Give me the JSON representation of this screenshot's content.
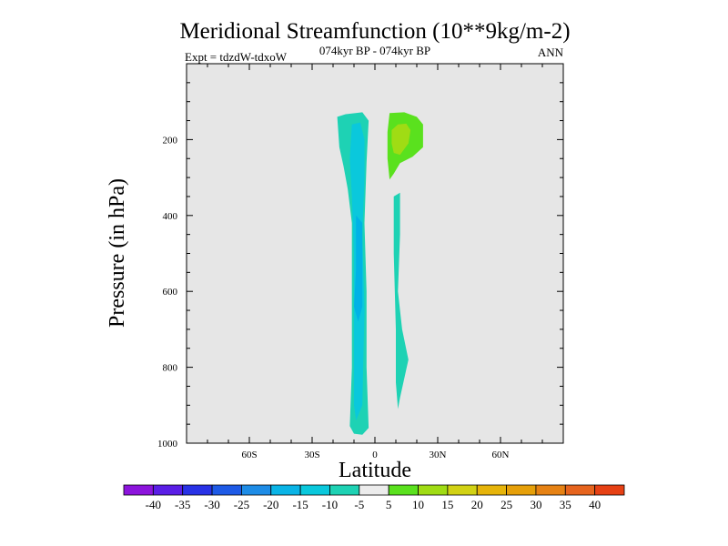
{
  "chart_data": {
    "type": "contour",
    "title": "Meridional Streamfunction (10**9kg/m-2)",
    "subtitle_left": "Expt = tdzdW-tdxoW",
    "subtitle_center": "074kyr BP - 074kyr BP",
    "subtitle_right": "ANN",
    "xlabel": "Latitude",
    "ylabel": "Pressure (in hPa)",
    "xlim": [
      -90,
      90
    ],
    "ylim": [
      1000,
      0
    ],
    "x_ticks": [
      {
        "value": -60,
        "label": "60S"
      },
      {
        "value": -30,
        "label": "30S"
      },
      {
        "value": 0,
        "label": "0"
      },
      {
        "value": 30,
        "label": "30N"
      },
      {
        "value": 60,
        "label": "60N"
      }
    ],
    "y_ticks": [
      {
        "value": 200,
        "label": "200"
      },
      {
        "value": 400,
        "label": "400"
      },
      {
        "value": 600,
        "label": "600"
      },
      {
        "value": 800,
        "label": "800"
      },
      {
        "value": 1000,
        "label": "1000"
      }
    ],
    "background_color": "#e6e6e6",
    "contour_regions": [
      {
        "name": "negative-cell-outer",
        "level_min": -10,
        "level_max": -5,
        "color": "#1ed2b4",
        "points": [
          [
            -18,
            140
          ],
          [
            -14,
            133
          ],
          [
            -6,
            128
          ],
          [
            -3,
            150
          ],
          [
            -4,
            260
          ],
          [
            -5,
            420
          ],
          [
            -4,
            600
          ],
          [
            -4,
            800
          ],
          [
            -3,
            960
          ],
          [
            -6,
            978
          ],
          [
            -10,
            975
          ],
          [
            -12,
            955
          ],
          [
            -11,
            800
          ],
          [
            -11,
            600
          ],
          [
            -11,
            420
          ],
          [
            -13,
            330
          ],
          [
            -15,
            270
          ],
          [
            -17,
            220
          ]
        ]
      },
      {
        "name": "negative-cell-mid",
        "level_min": -15,
        "level_max": -10,
        "color": "#0ac8dc",
        "points": [
          [
            -11,
            160
          ],
          [
            -7,
            155
          ],
          [
            -5,
            200
          ],
          [
            -5,
            300
          ],
          [
            -6,
            450
          ],
          [
            -5,
            650
          ],
          [
            -6,
            900
          ],
          [
            -9,
            940
          ],
          [
            -10,
            900
          ],
          [
            -10,
            700
          ],
          [
            -10,
            500
          ],
          [
            -11,
            350
          ],
          [
            -12,
            250
          ]
        ]
      },
      {
        "name": "negative-cell-inner",
        "level_min": -20,
        "level_max": -15,
        "color": "#00b2e6",
        "points": [
          [
            -9,
            400
          ],
          [
            -6,
            420
          ],
          [
            -6,
            520
          ],
          [
            -6,
            640
          ],
          [
            -8,
            680
          ],
          [
            -10,
            640
          ],
          [
            -9,
            540
          ],
          [
            -9,
            480
          ]
        ]
      },
      {
        "name": "positive-cell-outer",
        "level_min": 5,
        "level_max": 10,
        "color": "#5ae11e",
        "points": [
          [
            7,
            130
          ],
          [
            14,
            128
          ],
          [
            20,
            140
          ],
          [
            23,
            160
          ],
          [
            23,
            220
          ],
          [
            18,
            245
          ],
          [
            12,
            262
          ],
          [
            9,
            290
          ],
          [
            7,
            305
          ],
          [
            6,
            250
          ],
          [
            6,
            180
          ]
        ]
      },
      {
        "name": "positive-cell-inner",
        "level_min": 10,
        "level_max": 15,
        "color": "#a0dc14",
        "points": [
          [
            8,
            175
          ],
          [
            11,
            160
          ],
          [
            15,
            158
          ],
          [
            17,
            175
          ],
          [
            16,
            210
          ],
          [
            12,
            240
          ],
          [
            9,
            235
          ],
          [
            8,
            210
          ]
        ]
      },
      {
        "name": "negative-lower-branch",
        "level_min": -10,
        "level_max": -5,
        "color": "#1ed2b4",
        "points": [
          [
            9,
            350
          ],
          [
            12,
            340
          ],
          [
            12,
            450
          ],
          [
            11,
            600
          ],
          [
            13,
            700
          ],
          [
            16,
            780
          ],
          [
            14,
            830
          ],
          [
            12,
            880
          ],
          [
            11,
            910
          ],
          [
            10,
            840
          ],
          [
            10,
            700
          ],
          [
            9,
            500
          ]
        ]
      }
    ],
    "colorbar": {
      "colors": [
        "#8c14dc",
        "#5a1ee6",
        "#2832e6",
        "#1e5ae6",
        "#1e8ce6",
        "#0ab4e6",
        "#0ac8dc",
        "#1ed2b4",
        "#ececec",
        "#5ae11e",
        "#a0dc14",
        "#d2d214",
        "#e6b40a",
        "#e6a00a",
        "#e68214",
        "#e6641e",
        "#e64114"
      ],
      "labels": [
        "-40",
        "-35",
        "-30",
        "-25",
        "-20",
        "-15",
        "-10",
        "-5",
        "5",
        "10",
        "15",
        "20",
        "25",
        "30",
        "35",
        "40"
      ]
    }
  }
}
